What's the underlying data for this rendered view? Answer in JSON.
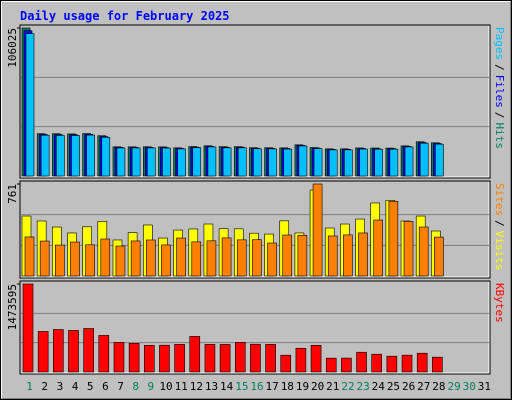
{
  "chart_data": [
    {
      "type": "bar",
      "title": "Daily usage for February 2025",
      "legend_separator": "/",
      "ylim": [
        0,
        106025
      ],
      "yticks": [
        106025
      ],
      "series": [
        {
          "name": "Hits",
          "color": "#00805c",
          "values": [
            106025,
            30294,
            30300,
            30150,
            30400,
            28852,
            20918,
            20900,
            20950,
            20880,
            20196,
            21100,
            21640,
            21050,
            20990,
            20300,
            20250,
            20150,
            22360,
            20400,
            19475,
            19500,
            20100,
            20050,
            20000,
            21600,
            24524,
            23803,
            null,
            null,
            null
          ]
        },
        {
          "name": "Files",
          "color": "#0000ff",
          "values": [
            104100,
            29800,
            29700,
            29600,
            29900,
            28300,
            20500,
            20500,
            20500,
            20400,
            19800,
            20700,
            21200,
            20600,
            20600,
            19900,
            19800,
            19700,
            21900,
            20000,
            19100,
            19100,
            19700,
            19600,
            19600,
            21200,
            24000,
            23300,
            null,
            null,
            null
          ]
        },
        {
          "name": "Pages",
          "color": "#00c0ff",
          "values": [
            102000,
            29200,
            29100,
            29000,
            29300,
            27700,
            20100,
            20100,
            20100,
            20000,
            19400,
            20300,
            20800,
            20200,
            20200,
            19500,
            19400,
            19300,
            21500,
            19600,
            18700,
            18700,
            19300,
            19200,
            19200,
            20800,
            23500,
            22800,
            null,
            null,
            null
          ]
        }
      ]
    },
    {
      "type": "bar",
      "legend_separator": "/",
      "ylim": [
        0,
        761
      ],
      "yticks": [
        761
      ],
      "series": [
        {
          "name": "Visits",
          "color": "#ffff00",
          "values": [
            496,
            455,
            405,
            356,
            407,
            452,
            298,
            358,
            422,
            314,
            380,
            389,
            430,
            391,
            390,
            354,
            347,
            456,
            356,
            711,
            397,
            430,
            471,
            604,
            626,
            455,
            496,
            372,
            null,
            null,
            null
          ]
        },
        {
          "name": "Sites",
          "color": "#ff8000",
          "values": [
            323,
            289,
            256,
            281,
            258,
            306,
            248,
            290,
            298,
            257,
            314,
            282,
            291,
            315,
            299,
            300,
            273,
            339,
            337,
            761,
            331,
            340,
            356,
            463,
            618,
            452,
            405,
            322,
            null,
            null,
            null
          ]
        }
      ]
    },
    {
      "type": "bar",
      "ylim": [
        0,
        1473595
      ],
      "yticks": [
        1473595
      ],
      "categories": [
        "1",
        "2",
        "3",
        "4",
        "5",
        "6",
        "7",
        "8",
        "9",
        "10",
        "11",
        "12",
        "13",
        "14",
        "15",
        "16",
        "17",
        "18",
        "19",
        "20",
        "21",
        "22",
        "23",
        "24",
        "25",
        "26",
        "27",
        "28",
        "29",
        "30",
        "31"
      ],
      "weekend": [
        true,
        false,
        false,
        false,
        false,
        false,
        false,
        true,
        true,
        false,
        false,
        false,
        false,
        false,
        true,
        true,
        false,
        false,
        false,
        false,
        false,
        true,
        true,
        false,
        false,
        false,
        false,
        false,
        true,
        true,
        false
      ],
      "weekend_color": "#00805c",
      "series": [
        {
          "name": "KBytes",
          "color": "#ff0000",
          "values": [
            1473595,
            678837,
            711951,
            695394,
            728508,
            612609,
            496710,
            480153,
            447039,
            449000,
            463596,
            596052,
            464000,
            462000,
            497000,
            465000,
            463000,
            281469,
            397368,
            447000,
            231798,
            233000,
            331140,
            298026,
            264912,
            282000,
            314583,
            248355,
            null,
            null,
            null
          ]
        }
      ]
    }
  ]
}
